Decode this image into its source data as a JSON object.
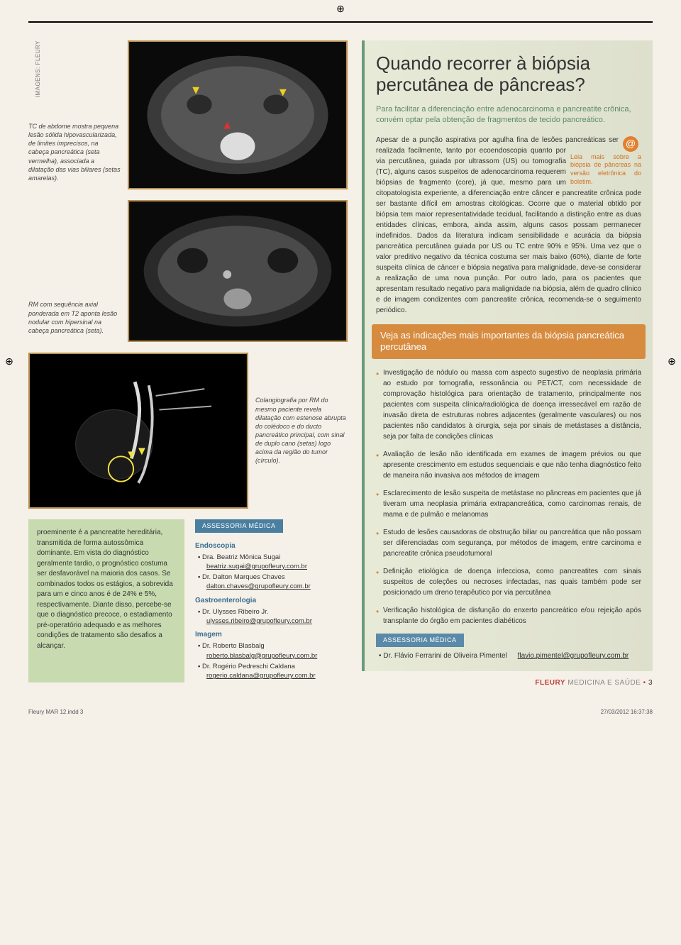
{
  "credit": "IMAGENS: FLEURY",
  "caption1": "TC de abdome mostra pequena lesão sólida hipovascularizada, de limites imprecisos, na cabeça pancreática (seta vermelha), associada a dilatação das vias biliares (setas amarelas).",
  "caption2": "RM com sequência axial ponderada em T2 aponta lesão nodular com hipersinal na cabeça pancreática (seta).",
  "caption3": "Colangiografia por RM do mesmo paciente revela dilatação com estenose abrupta do colédoco e do ducto pancreático principal, com sinal de duplo cano (setas) logo acima da região do tumor (círculo).",
  "greenBox": "proeminente é a pancreatite hereditária, transmitida de forma autossômica dominante. Em vista do diagnóstico geralmente tardio, o prognóstico costuma ser desfavorável na maioria dos casos. Se combinados todos os estágios, a sobrevida para um e cinco anos é de 24% e 5%, respectivamente. Diante disso, percebe-se que o diagnóstico precoce, o estadiamento pré-operatório adequado e as melhores condições de tratamento são desafios a alcançar.",
  "assessoriaLeft": {
    "tag": "ASSESSORIA MÉDICA",
    "groups": [
      {
        "title": "Endoscopia",
        "people": [
          {
            "name": "Dra. Beatriz Mônica Sugai",
            "email": "beatriz.sugai@grupofleury.com.br"
          },
          {
            "name": "Dr. Dalton Marques Chaves",
            "email": "dalton.chaves@grupofleury.com.br"
          }
        ]
      },
      {
        "title": "Gastroenterologia",
        "people": [
          {
            "name": "Dr. Ulysses Ribeiro Jr.",
            "email": "ulysses.ribeiro@grupofleury.com.br"
          }
        ]
      },
      {
        "title": "Imagem",
        "people": [
          {
            "name": "Dr. Roberto Blasbalg",
            "email": "roberto.blasbalg@grupofleury.com.br"
          },
          {
            "name": "Dr. Rogério Pedreschi Caldana",
            "email": "rogerio.caldana@grupofleury.com.br"
          }
        ]
      }
    ]
  },
  "sidebar": {
    "title": "Quando recorrer à biópsia percutânea de pâncreas?",
    "lead": "Para facilitar a diferenciação entre adenocarcinoma e pancreatite crônica, convém optar pela obtenção de fragmentos de tecido pancreático.",
    "body": "Apesar de a punção aspirativa por agulha fina de lesões pancreáticas ser realizada facilmente, tanto por ecoendoscopia quanto por via percutânea, guiada por ultrassom (US) ou tomografia (TC), alguns casos suspeitos de adenocarcinoma requerem biópsias de fragmento (core), já que, mesmo para um citopatologista experiente, a diferenciação entre câncer e pancreatite crônica pode ser bastante difícil em amostras citológicas. Ocorre que o material obtido por biópsia tem maior representatividade tecidual, facilitando a distinção entre as duas entidades clínicas, embora, ainda assim, alguns casos possam permanecer indefinidos. Dados da literatura indicam sensibilidade e acurácia da biópsia pancreática percutânea guiada por US ou TC entre 90% e 95%. Uma vez que o valor preditivo negativo da técnica costuma ser mais baixo (60%), diante de forte suspeita clínica de câncer e biópsia negativa para malignidade, deve-se considerar a realização de uma nova punção. Por outro lado, para os pacientes que apresentam resultado negativo para malignidade na biópsia, além de quadro clínico e de imagem condizentes com pancreatite crônica, recomenda-se o seguimento periódico.",
    "atCaption": "Leia mais sobre a biópsia de pâncreas na versão eletrônica do boletim.",
    "bannerTitle": "Veja as indicações mais importantes da biópsia pancreática percutânea",
    "bullets": [
      "Investigação de nódulo ou massa com aspecto sugestivo de neoplasia primária ao estudo por tomografia, ressonância ou PET/CT, com necessidade de comprovação histológica para orientação de tratamento, principalmente nos pacientes com suspeita clínica/radiológica de doença irressecável em razão de invasão direta de estruturas nobres adjacentes (geralmente vasculares) ou nos pacientes não candidatos à cirurgia, seja por sinais de metástases a distância, seja por falta de condições clínicas",
      "Avaliação de lesão não identificada em exames de imagem prévios ou que apresente crescimento em estudos sequenciais e que não tenha diagnóstico feito de maneira não invasiva aos métodos de imagem",
      "Esclarecimento de lesão suspeita de metástase no pâncreas em pacientes que já tiveram uma neoplasia primária extrapancreática, como carcinomas renais, de mama e de pulmão e melanomas",
      "Estudo de lesões causadoras de obstrução biliar ou pancreática que não possam ser diferenciadas com segurança, por métodos de imagem, entre carcinoma e pancreatite crônica pseudotumoral",
      "Definição etiológica de doença infecciosa, como pancreatites com sinais suspeitos de coleções ou necroses infectadas, nas quais também pode ser posicionado um dreno terapêutico por via percutânea",
      "Verificação histológica de disfunção do enxerto pancreático e/ou rejeição após transplante do órgão em pacientes diabéticos"
    ]
  },
  "assessoriaBottom": {
    "tag": "ASSESSORIA MÉDICA",
    "name": "Dr. Flávio Ferrarini de Oliveira Pimentel",
    "email": "flavio.pimentel@grupofleury.com.br"
  },
  "footer": {
    "brand": "FLEURY",
    "sub": "MEDICINA E SAÚDE",
    "page": "3"
  },
  "printMarks": {
    "file": "Fleury MAR 12.indd   3",
    "date": "27/03/2012   16:37:38"
  }
}
